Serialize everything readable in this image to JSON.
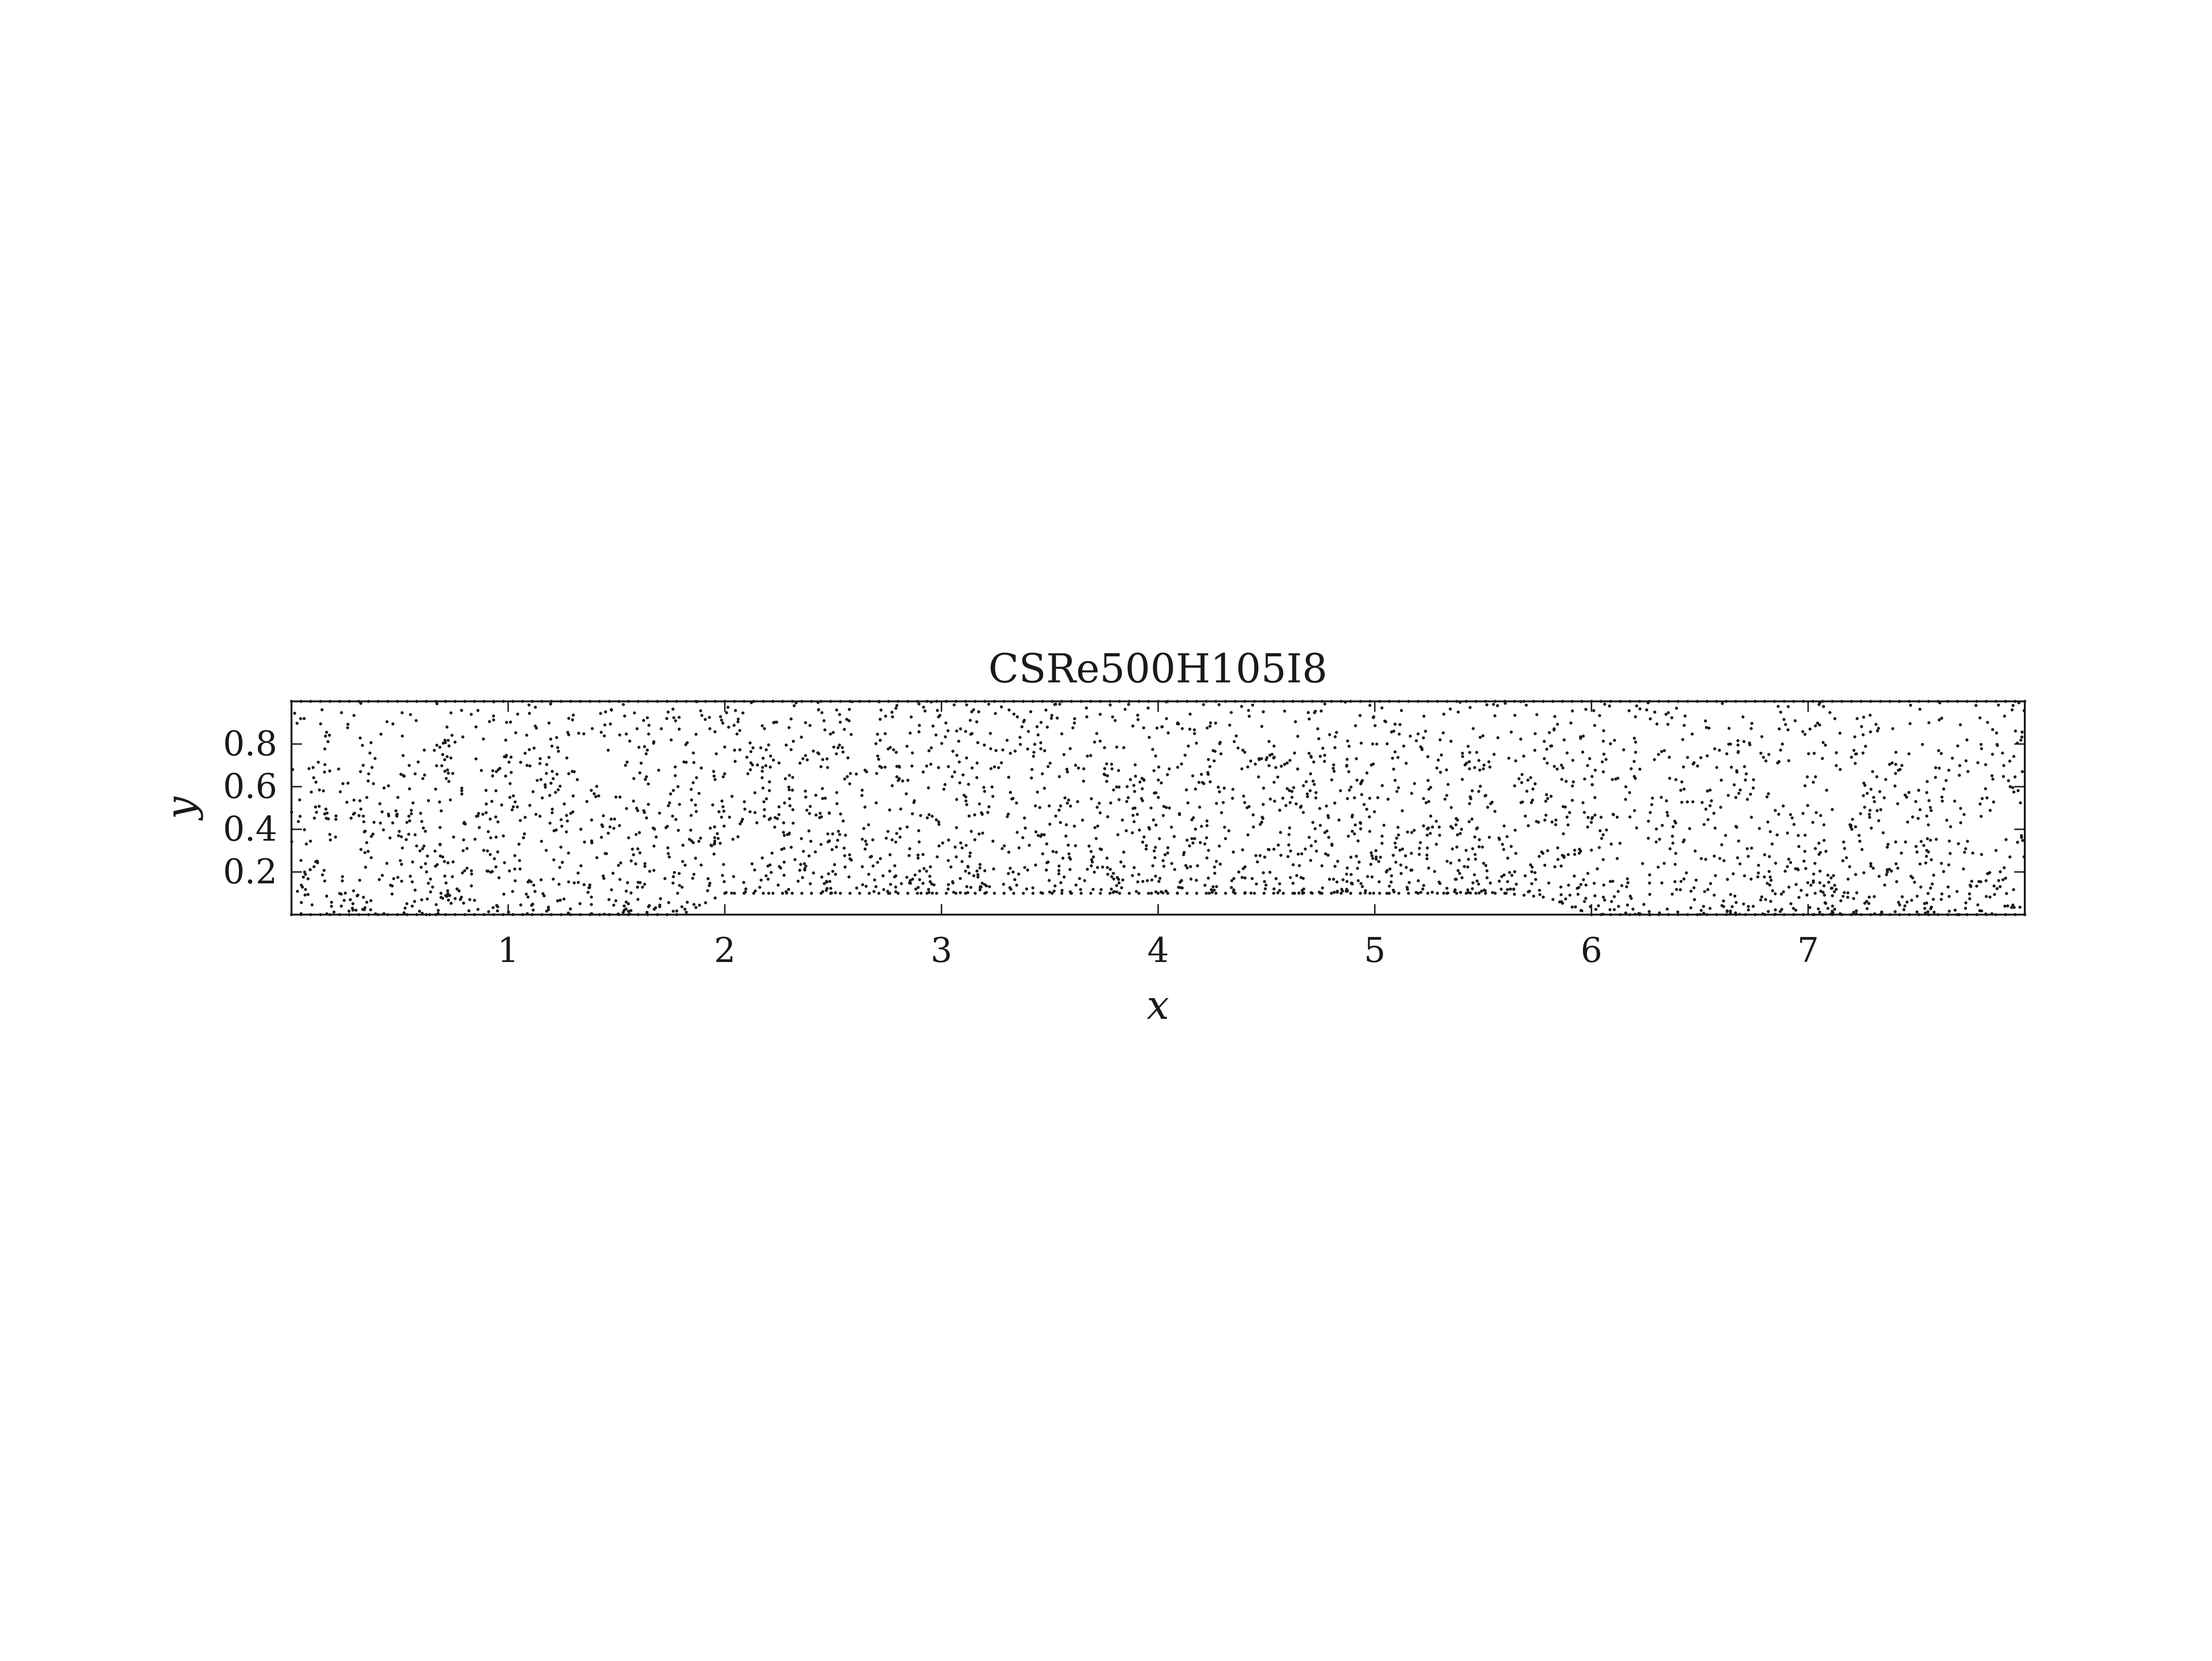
{
  "chart_data": {
    "type": "scatter",
    "title": "CSRe500H105I8",
    "xlabel": "x",
    "ylabel": "y",
    "xlim": [
      0,
      8
    ],
    "ylim": [
      0,
      1
    ],
    "x_ticks": [
      1,
      2,
      3,
      4,
      5,
      6,
      7
    ],
    "y_ticks": [
      0.2,
      0.4,
      0.6,
      0.8
    ],
    "x_tick_labels": [
      "1",
      "2",
      "3",
      "4",
      "5",
      "6",
      "7"
    ],
    "y_tick_labels": [
      "0.2",
      "0.4",
      "0.6",
      "0.8"
    ],
    "grid": false,
    "legend": "none",
    "marker_color": "#1a1a1a",
    "bottom_boundary": [
      [
        0.0,
        0.0
      ],
      [
        1.6,
        0.0
      ],
      [
        1.8,
        0.0
      ],
      [
        1.9,
        0.05
      ],
      [
        2.0,
        0.1
      ],
      [
        3.0,
        0.1
      ],
      [
        4.0,
        0.1
      ],
      [
        5.0,
        0.1
      ],
      [
        5.6,
        0.1
      ],
      [
        5.8,
        0.08
      ],
      [
        5.95,
        0.02
      ],
      [
        6.0,
        0.0
      ],
      [
        8.0,
        0.0
      ]
    ],
    "point_cloud": {
      "description_of_distribution": "quasi-uniform node set, dense near bottom wall",
      "approx_count": 3000
    }
  }
}
